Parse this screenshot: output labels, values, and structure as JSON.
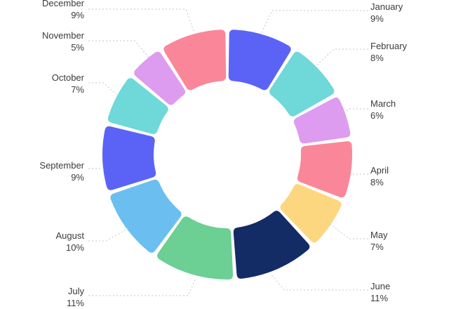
{
  "chart_data": {
    "type": "pie",
    "title": "",
    "unit": "%",
    "categories": [
      "January",
      "February",
      "March",
      "April",
      "May",
      "June",
      "July",
      "August",
      "September",
      "October",
      "November",
      "December"
    ],
    "values": [
      9,
      8,
      6,
      8,
      7,
      11,
      11,
      10,
      9,
      7,
      5,
      9
    ],
    "labels": [
      "9%",
      "8%",
      "6%",
      "8%",
      "7%",
      "11%",
      "11%",
      "10%",
      "9%",
      "7%",
      "5%",
      "9%"
    ],
    "colors": [
      "#5b63f6",
      "#6fd8d8",
      "#dd9cf0",
      "#fa8799",
      "#fdd77f",
      "#132c66",
      "#6ccf93",
      "#6bbff0",
      "#5b63f6",
      "#6fd8d8",
      "#dd9cf0",
      "#fa8799"
    ],
    "legend": "labels around ring"
  }
}
